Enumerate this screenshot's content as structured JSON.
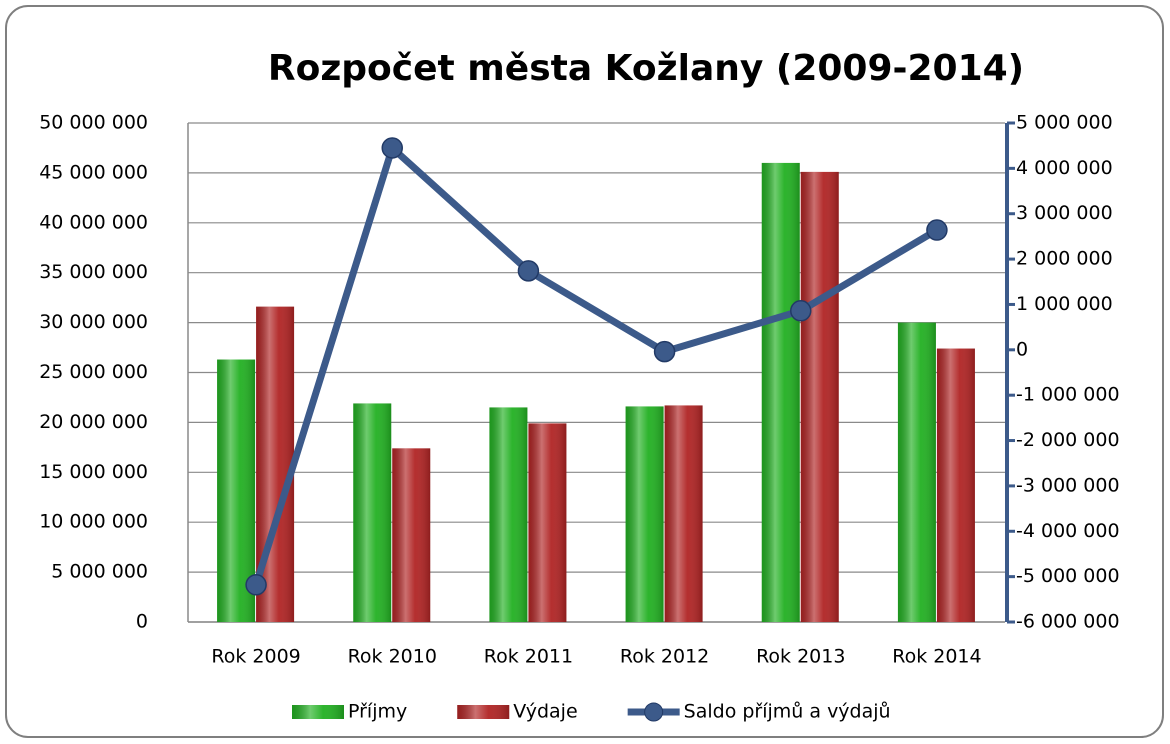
{
  "chart_data": {
    "type": "bar",
    "title": "Rozpočet města Kožlany (2009-2014)",
    "categories": [
      "Rok 2009",
      "Rok 2010",
      "Rok 2011",
      "Rok 2012",
      "Rok 2013",
      "Rok 2014"
    ],
    "series": [
      {
        "name": "Příjmy",
        "color": "#22b022",
        "values": [
          26300000,
          21900000,
          21500000,
          21600000,
          46000000,
          30000000
        ]
      },
      {
        "name": "Výdaje",
        "color": "#b02424",
        "values": [
          31600000,
          17400000,
          19900000,
          21700000,
          45100000,
          27400000
        ]
      },
      {
        "name": "Saldo příjmů a výdajů",
        "color": "#3c5a8a",
        "type": "line",
        "axis": "y2",
        "values": [
          -5180000,
          4450000,
          1740000,
          -40000,
          860000,
          2640000
        ]
      }
    ],
    "ylim": [
      0,
      50000000
    ],
    "yticks": [
      0,
      {
        "value": 5000000,
        "label": "5 000 000"
      },
      {
        "value": 10000000,
        "label": "10 000 000"
      },
      {
        "value": 15000000,
        "label": "15 000 000"
      },
      {
        "value": 20000000,
        "label": "20 000 000"
      },
      {
        "value": 25000000,
        "label": "25 000 000"
      },
      {
        "value": 30000000,
        "label": "30 000 000"
      },
      {
        "value": 35000000,
        "label": "35 000 000"
      },
      {
        "value": 40000000,
        "label": "40 000 000"
      },
      {
        "value": 45000000,
        "label": "45 000 000"
      },
      {
        "value": 50000000,
        "label": "50 000 000"
      }
    ],
    "y2lim": [
      -6000000,
      5000000
    ],
    "y2ticks": [
      {
        "value": -6000000,
        "label": "-6 000 000"
      },
      {
        "value": -5000000,
        "label": "-5 000 000"
      },
      {
        "value": -4000000,
        "label": "-4 000 000"
      },
      {
        "value": -3000000,
        "label": "-3 000 000"
      },
      {
        "value": -2000000,
        "label": "-2 000 000"
      },
      {
        "value": -1000000,
        "label": "-1 000 000"
      },
      0,
      {
        "value": 1000000,
        "label": "1 000 000"
      },
      {
        "value": 2000000,
        "label": "2 000 000"
      },
      {
        "value": 3000000,
        "label": "3 000 000"
      },
      {
        "value": 4000000,
        "label": "4 000 000"
      },
      {
        "value": 5000000,
        "label": "5 000 000"
      }
    ],
    "grid": true,
    "legend": "bottom"
  }
}
